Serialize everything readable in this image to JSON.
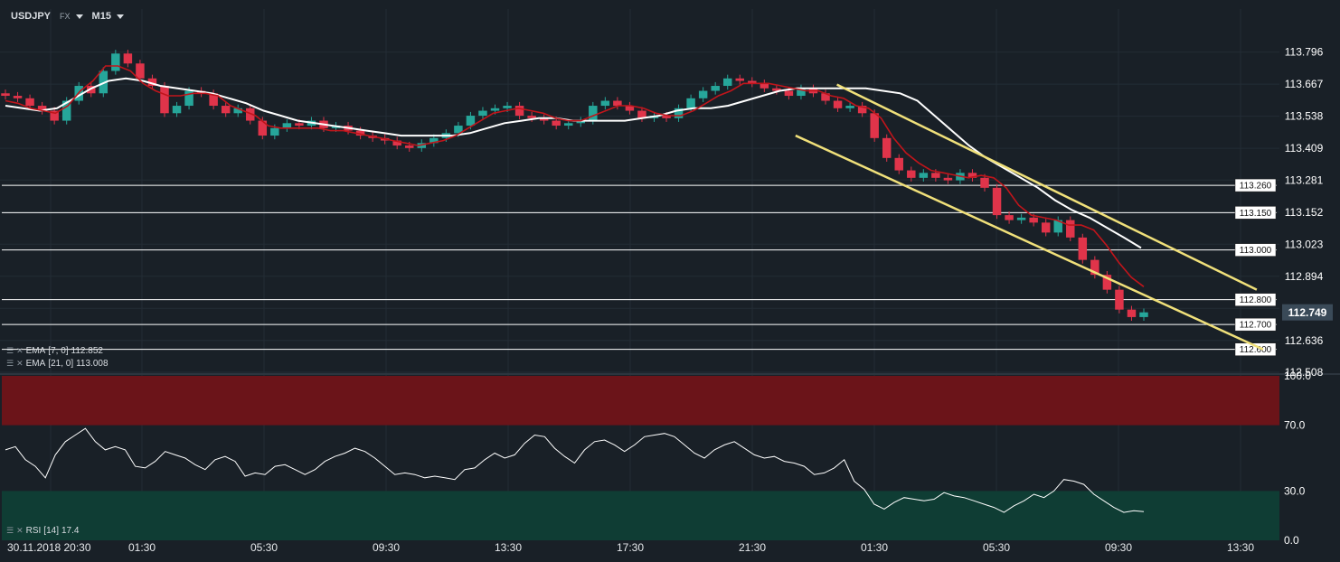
{
  "toolbar": {
    "symbol": "USDJPY",
    "market": "FX",
    "interval": "M15"
  },
  "indicators": {
    "ema7": {
      "label": "EMA",
      "params": "[7, 0]",
      "value": "112.852",
      "color": "#c0151b"
    },
    "ema21": {
      "label": "EMA",
      "params": "[21, 0]",
      "value": "113.008",
      "color": "#ffffff"
    },
    "rsi": {
      "label": "RSI",
      "params": "[14]",
      "value": "17.4"
    }
  },
  "chart_data": [
    {
      "type": "candlestick",
      "title": "",
      "price_axis_ticks": [
        "113.796",
        "113.667",
        "113.538",
        "113.409",
        "113.281",
        "113.152",
        "113.023",
        "112.894",
        "112.765",
        "112.636",
        "112.508"
      ],
      "ylim": [
        112.508,
        113.86
      ],
      "time_labels": [
        "30.11.2018 20:30",
        "01:30",
        "05:30",
        "09:30",
        "13:30",
        "17:30",
        "21:30",
        "01:30",
        "05:30",
        "09:30",
        "13:30"
      ],
      "last_price": "112.749",
      "last_price_color": "#3a4a58",
      "up_color": "#26a69a",
      "down_color": "#e0344a",
      "horizontal_levels": [
        "113.260",
        "113.150",
        "113.000",
        "112.800",
        "112.700",
        "112.600"
      ],
      "trendline_color": "#f0e07a",
      "trendlines": [
        {
          "from": [
            262,
            113.665
          ],
          "to": [
            394,
            112.84
          ]
        },
        {
          "from": [
            249,
            113.46
          ],
          "to": [
            396,
            112.6
          ]
        }
      ],
      "bar_count": 400,
      "close": [
        113.62,
        113.61,
        113.58,
        113.56,
        113.52,
        113.6,
        113.66,
        113.63,
        113.72,
        113.79,
        113.75,
        113.69,
        113.66,
        113.55,
        113.58,
        113.64,
        113.63,
        113.58,
        113.55,
        113.57,
        113.52,
        113.46,
        113.49,
        113.51,
        113.5,
        113.52,
        113.49,
        113.5,
        113.48,
        113.46,
        113.45,
        113.44,
        113.42,
        113.41,
        113.43,
        113.45,
        113.47,
        113.5,
        113.54,
        113.56,
        113.57,
        113.58,
        113.54,
        113.53,
        113.52,
        113.5,
        113.51,
        113.52,
        113.58,
        113.6,
        113.58,
        113.56,
        113.53,
        113.54,
        113.53,
        113.57,
        113.61,
        113.64,
        113.66,
        113.69,
        113.68,
        113.67,
        113.65,
        113.64,
        113.62,
        113.65,
        113.63,
        113.6,
        113.57,
        113.58,
        113.55,
        113.45,
        113.37,
        113.32,
        113.29,
        113.31,
        113.29,
        113.28,
        113.31,
        113.29,
        113.25,
        113.14,
        113.12,
        113.13,
        113.11,
        113.07,
        113.12,
        113.05,
        112.96,
        112.9,
        112.84,
        112.76,
        112.73,
        112.749
      ],
      "ema7": [
        113.6,
        113.59,
        113.57,
        113.56,
        113.55,
        113.58,
        113.64,
        113.68,
        113.74,
        113.74,
        113.72,
        113.67,
        113.64,
        113.62,
        113.62,
        113.63,
        113.63,
        113.62,
        113.58,
        113.56,
        113.54,
        113.5,
        113.49,
        113.49,
        113.49,
        113.49,
        113.48,
        113.48,
        113.47,
        113.46,
        113.45,
        113.44,
        113.43,
        113.42,
        113.43,
        113.44,
        113.46,
        113.49,
        113.52,
        113.55,
        113.56,
        113.57,
        113.56,
        113.55,
        113.53,
        113.52,
        113.52,
        113.54,
        113.56,
        113.58,
        113.58,
        113.57,
        113.55,
        113.54,
        113.54,
        113.56,
        113.59,
        113.62,
        113.64,
        113.67,
        113.67,
        113.67,
        113.66,
        113.65,
        113.64,
        113.64,
        113.62,
        113.61,
        113.58,
        113.57,
        113.53,
        113.45,
        113.39,
        113.35,
        113.32,
        113.31,
        113.3,
        113.29,
        113.3,
        113.29,
        113.25,
        113.18,
        113.14,
        113.13,
        113.12,
        113.1,
        113.1,
        113.08,
        113.02,
        112.95,
        112.89,
        112.852
      ],
      "ema21": [
        113.58,
        113.57,
        113.56,
        113.57,
        113.61,
        113.65,
        113.68,
        113.69,
        113.68,
        113.66,
        113.65,
        113.64,
        113.63,
        113.61,
        113.59,
        113.56,
        113.54,
        113.52,
        113.51,
        113.5,
        113.49,
        113.48,
        113.47,
        113.46,
        113.46,
        113.46,
        113.46,
        113.47,
        113.49,
        113.51,
        113.52,
        113.53,
        113.53,
        113.52,
        113.52,
        113.52,
        113.52,
        113.53,
        113.54,
        113.56,
        113.57,
        113.57,
        113.58,
        113.6,
        113.62,
        113.64,
        113.65,
        113.65,
        113.65,
        113.65,
        113.65,
        113.64,
        113.63,
        113.6,
        113.54,
        113.48,
        113.42,
        113.37,
        113.33,
        113.29,
        113.25,
        113.2,
        113.16,
        113.13,
        113.09,
        113.05,
        113.008
      ]
    },
    {
      "type": "line",
      "title": "",
      "ylim": [
        0,
        100
      ],
      "y_ticks": [
        "100.0",
        "70.0",
        "30.0",
        "0.0"
      ],
      "overbought": 70,
      "oversold": 30,
      "overbought_color": "#6b1419",
      "oversold_color": "#0f3d34",
      "values": [
        55,
        57,
        49,
        45,
        38,
        52,
        60,
        64,
        68,
        60,
        55,
        57,
        55,
        45,
        44,
        48,
        54,
        52,
        50,
        46,
        43,
        49,
        51,
        48,
        39,
        41,
        40,
        45,
        46,
        43,
        40,
        43,
        48,
        51,
        53,
        56,
        54,
        50,
        45,
        40,
        41,
        40,
        38,
        39,
        38,
        37,
        43,
        44,
        49,
        53,
        50,
        52,
        59,
        64,
        63,
        56,
        51,
        47,
        55,
        60,
        61,
        58,
        54,
        58,
        63,
        64,
        65,
        63,
        58,
        53,
        50,
        55,
        58,
        60,
        56,
        52,
        50,
        51,
        48,
        47,
        45,
        40,
        41,
        44,
        49,
        36,
        31,
        22,
        19,
        23,
        26,
        25,
        24,
        25,
        29,
        27,
        26,
        24,
        22,
        20,
        17,
        21,
        24,
        28,
        26,
        30,
        37,
        36,
        34,
        28,
        24,
        20,
        17,
        18,
        17.4
      ]
    }
  ]
}
